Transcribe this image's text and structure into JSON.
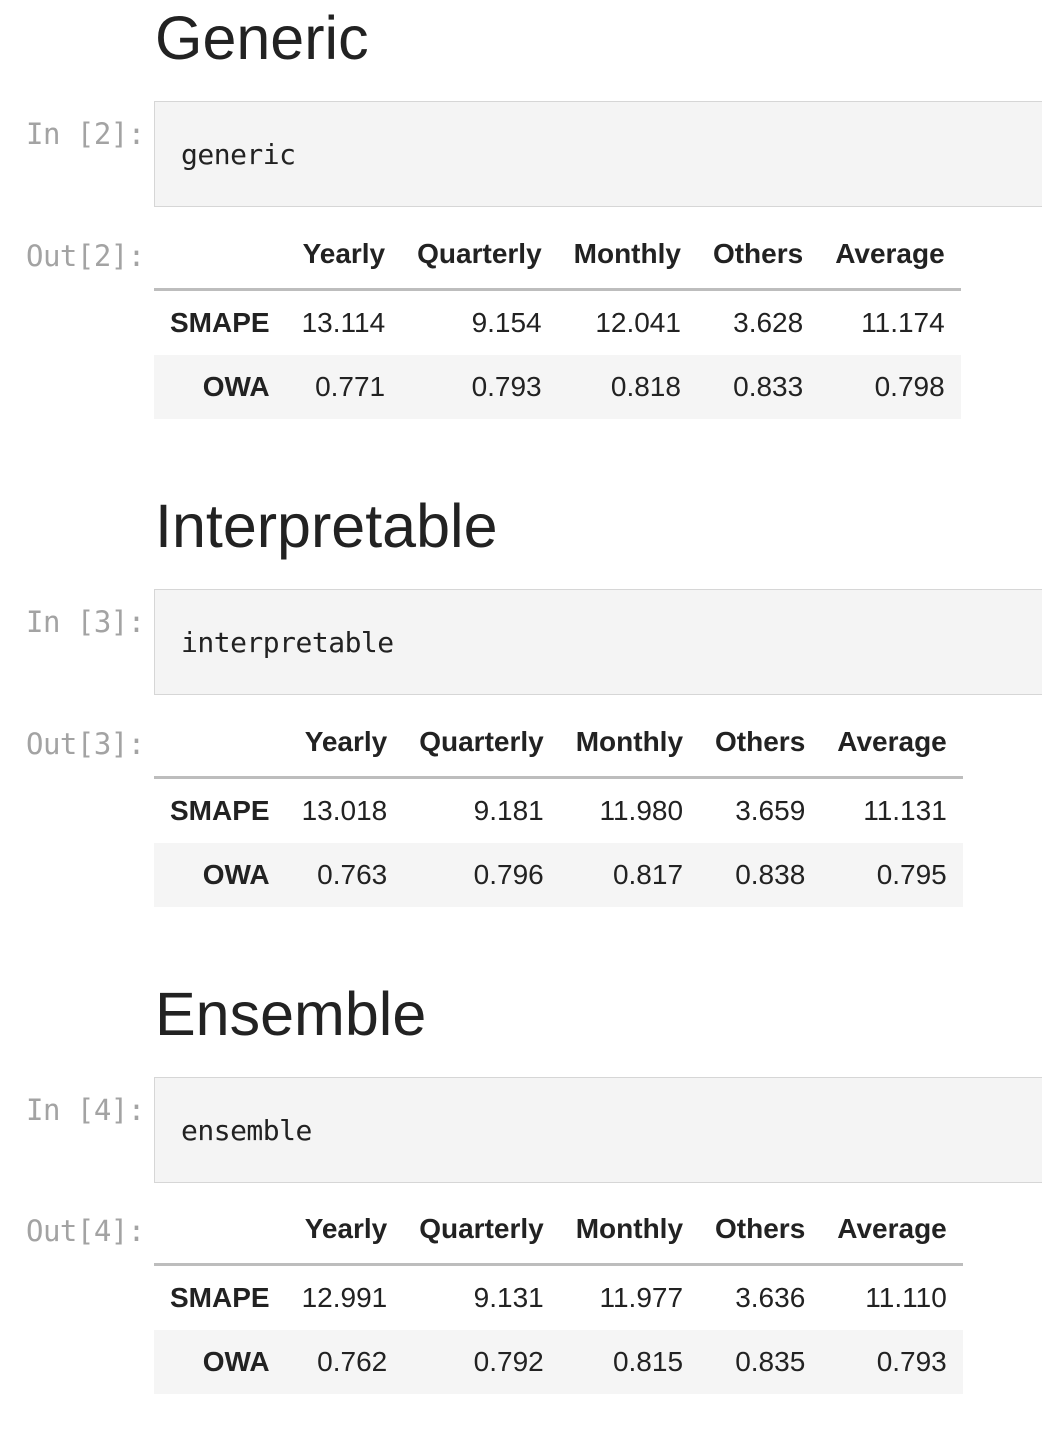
{
  "sections": [
    {
      "heading": "Generic",
      "in_prompt": "In [2]:",
      "code": "generic",
      "out_prompt": "Out[2]:",
      "columns": [
        "",
        "Yearly",
        "Quarterly",
        "Monthly",
        "Others",
        "Average"
      ],
      "rows": [
        {
          "label": "SMAPE",
          "values": [
            "13.114",
            "9.154",
            "12.041",
            "3.628",
            "11.174"
          ]
        },
        {
          "label": "OWA",
          "values": [
            "0.771",
            "0.793",
            "0.818",
            "0.833",
            "0.798"
          ]
        }
      ]
    },
    {
      "heading": "Interpretable",
      "in_prompt": "In [3]:",
      "code": "interpretable",
      "out_prompt": "Out[3]:",
      "columns": [
        "",
        "Yearly",
        "Quarterly",
        "Monthly",
        "Others",
        "Average"
      ],
      "rows": [
        {
          "label": "SMAPE",
          "values": [
            "13.018",
            "9.181",
            "11.980",
            "3.659",
            "11.131"
          ]
        },
        {
          "label": "OWA",
          "values": [
            "0.763",
            "0.796",
            "0.817",
            "0.838",
            "0.795"
          ]
        }
      ]
    },
    {
      "heading": "Ensemble",
      "in_prompt": "In [4]:",
      "code": "ensemble",
      "out_prompt": "Out[4]:",
      "columns": [
        "",
        "Yearly",
        "Quarterly",
        "Monthly",
        "Others",
        "Average"
      ],
      "rows": [
        {
          "label": "SMAPE",
          "values": [
            "12.991",
            "9.131",
            "11.977",
            "3.636",
            "11.110"
          ]
        },
        {
          "label": "OWA",
          "values": [
            "0.762",
            "0.792",
            "0.815",
            "0.835",
            "0.793"
          ]
        }
      ]
    }
  ],
  "colors": {
    "text": "#222222",
    "prompt": "#a3a3a3",
    "code_bg": "#f4f4f4",
    "code_border": "#d6d6d6",
    "table_rule": "#bdbdbd",
    "stripe": "#f5f5f5"
  }
}
